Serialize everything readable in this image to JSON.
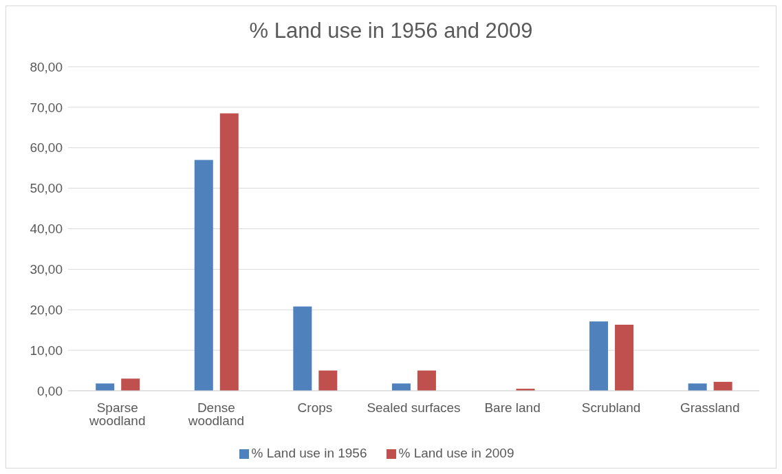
{
  "chart_data": {
    "type": "bar",
    "title": "% Land use in 1956 and 2009",
    "categories": [
      "Sparse woodland",
      "Dense woodland",
      "Crops",
      "Sealed surfaces",
      "Bare land",
      "Scrubland",
      "Grassland"
    ],
    "series": [
      {
        "name": "% Land use in 1956",
        "color": "#4f81bd",
        "values": [
          1.8,
          57.0,
          20.8,
          1.8,
          0,
          17.1,
          1.8
        ]
      },
      {
        "name": "% Land use in 2009",
        "color": "#c0504d",
        "values": [
          3.0,
          68.5,
          5.0,
          5.0,
          0.5,
          16.3,
          2.2
        ]
      }
    ],
    "ylim": [
      0,
      80
    ],
    "yticks": [
      {
        "value": 0,
        "label": "0,00"
      },
      {
        "value": 10,
        "label": "10,00"
      },
      {
        "value": 20,
        "label": "20,00"
      },
      {
        "value": 30,
        "label": "30,00"
      },
      {
        "value": 40,
        "label": "40,00"
      },
      {
        "value": 50,
        "label": "50,00"
      },
      {
        "value": 60,
        "label": "60,00"
      },
      {
        "value": 70,
        "label": "70,00"
      },
      {
        "value": 80,
        "label": "80,00"
      }
    ],
    "grid": "y",
    "legend": "bottom"
  }
}
